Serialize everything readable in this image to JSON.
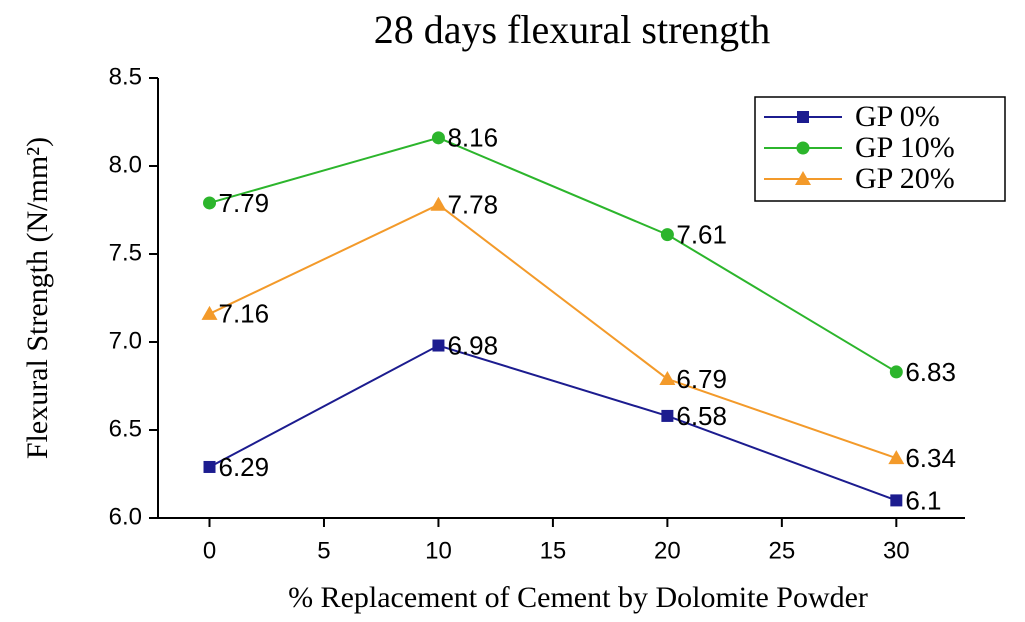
{
  "chart_data": {
    "type": "line",
    "title": "28 days flexural strength",
    "xlabel": "% Replacement of Cement by Dolomite Powder",
    "ylabel": "Flexural Strength (N/mm²)",
    "x": [
      0,
      10,
      20,
      30
    ],
    "series": [
      {
        "name": "GP 0%",
        "color": "#1c1c8f",
        "marker": "square",
        "values": [
          6.29,
          6.98,
          6.58,
          6.1
        ]
      },
      {
        "name": "GP 10%",
        "color": "#2cb52c",
        "marker": "circle",
        "values": [
          7.79,
          8.16,
          7.61,
          6.83
        ]
      },
      {
        "name": "GP 20%",
        "color": "#f39a2a",
        "marker": "triangle",
        "values": [
          7.16,
          7.78,
          6.79,
          6.34
        ]
      }
    ],
    "xlim": [
      -2.25,
      33.0
    ],
    "xticks": [
      0,
      5,
      10,
      15,
      20,
      25,
      30
    ],
    "ylim": [
      6.0,
      8.5
    ],
    "yticks": [
      {
        "value": 6.0,
        "label": "6.0"
      },
      {
        "value": 6.5,
        "label": "6.5"
      },
      {
        "value": 7.0,
        "label": "7.0"
      },
      {
        "value": 7.5,
        "label": "7.5"
      },
      {
        "value": 8.0,
        "label": "8.0"
      },
      {
        "value": 8.5,
        "label": "8.5"
      }
    ],
    "legend": "top-right"
  }
}
